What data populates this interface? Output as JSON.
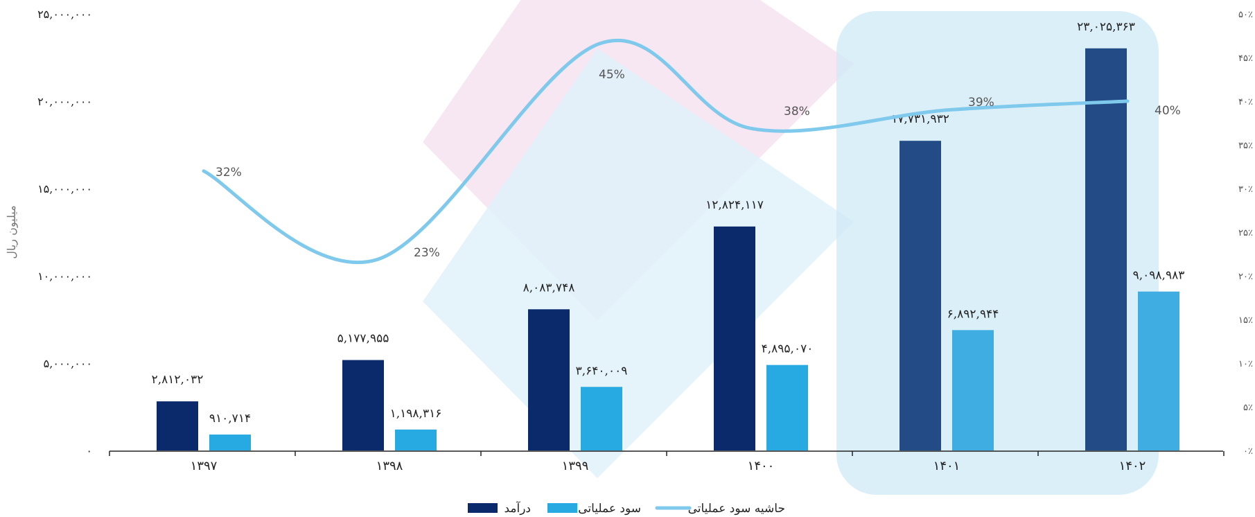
{
  "chart_data": {
    "type": "bar",
    "categories": [
      "۱۳۹۷",
      "۱۳۹۸",
      "۱۳۹۹",
      "۱۴۰۰",
      "۱۴۰۱",
      "۱۴۰۲"
    ],
    "series": [
      {
        "name": "درآمد",
        "values": [
          2812032,
          5177955,
          8083748,
          12824117,
          17731932,
          23025363
        ],
        "labels": [
          "۲,۸۱۲,۰۳۲",
          "۵,۱۷۷,۹۵۵",
          "۸,۰۸۳,۷۴۸",
          "۱۲,۸۲۴,۱۱۷",
          "۱۷,۷۳۱,۹۳۲",
          "۲۳,۰۲۵,۳۶۳"
        ],
        "color": "#0a2a6b"
      },
      {
        "name": "سود عملیاتی",
        "values": [
          910714,
          1198316,
          3640009,
          4895070,
          6892944,
          9098983
        ],
        "labels": [
          "۹۱۰,۷۱۴",
          "۱,۱۹۸,۳۱۶",
          "۳,۶۴۰,۰۰۹",
          "۴,۸۹۵,۰۷۰",
          "۶,۸۹۲,۹۴۴",
          "۹,۰۹۸,۹۸۳"
        ],
        "color": "#27a9e1"
      }
    ],
    "line": {
      "name": "حاشیه سود عملیاتی",
      "values": [
        32,
        23,
        45,
        38,
        39,
        40
      ],
      "labels": [
        "32%",
        "23%",
        "45%",
        "38%",
        "39%",
        "40%"
      ],
      "color": "#7fc9ec"
    },
    "ylabel": "میلیون ریال",
    "ylim": [
      0,
      25000000
    ],
    "yticks": [
      "۰",
      "۵,۰۰۰,۰۰۰",
      "۱۰,۰۰۰,۰۰۰",
      "۱۵,۰۰۰,۰۰۰",
      "۲۰,۰۰۰,۰۰۰",
      "۲۵,۰۰۰,۰۰۰"
    ],
    "y2lim": [
      0,
      50
    ],
    "y2ticks": [
      "۰٪",
      "۵٪",
      "۱۰٪",
      "۱۵٪",
      "۲۰٪",
      "۲۵٪",
      "۳۰٪",
      "۳۵٪",
      "۴۰٪",
      "۴۵٪",
      "۵۰٪"
    ],
    "highlight_categories": [
      "۱۴۰۱",
      "۱۴۰۲"
    ],
    "legend_position": "bottom",
    "grid": false
  }
}
